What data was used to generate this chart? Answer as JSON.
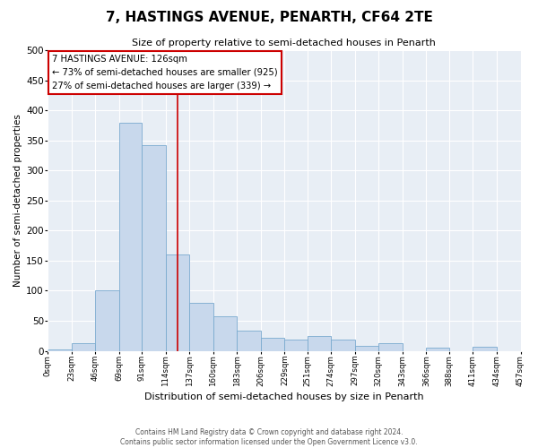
{
  "title": "7, HASTINGS AVENUE, PENARTH, CF64 2TE",
  "subtitle": "Size of property relative to semi-detached houses in Penarth",
  "xlabel": "Distribution of semi-detached houses by size in Penarth",
  "ylabel": "Number of semi-detached properties",
  "bin_labels": [
    "0sqm",
    "23sqm",
    "46sqm",
    "69sqm",
    "91sqm",
    "114sqm",
    "137sqm",
    "160sqm",
    "183sqm",
    "206sqm",
    "229sqm",
    "251sqm",
    "274sqm",
    "297sqm",
    "320sqm",
    "343sqm",
    "366sqm",
    "388sqm",
    "411sqm",
    "434sqm",
    "457sqm"
  ],
  "bin_edges": [
    0,
    23,
    46,
    69,
    91,
    114,
    137,
    160,
    183,
    206,
    229,
    251,
    274,
    297,
    320,
    343,
    366,
    388,
    411,
    434,
    457
  ],
  "bar_heights": [
    3,
    13,
    100,
    380,
    342,
    160,
    80,
    57,
    33,
    22,
    18,
    25,
    18,
    8,
    13,
    0,
    5,
    0,
    7,
    0,
    2
  ],
  "bar_color": "#c8d8ec",
  "bar_edge_color": "#7aaacf",
  "property_line_x": 126,
  "annotation_text_line1": "7 HASTINGS AVENUE: 126sqm",
  "annotation_text_line2": "← 73% of semi-detached houses are smaller (925)",
  "annotation_text_line3": "27% of semi-detached houses are larger (339) →",
  "annotation_box_color": "#ffffff",
  "annotation_box_edge": "#cc0000",
  "marker_line_color": "#cc0000",
  "ylim": [
    0,
    500
  ],
  "yticks": [
    0,
    50,
    100,
    150,
    200,
    250,
    300,
    350,
    400,
    450,
    500
  ],
  "footer_line1": "Contains HM Land Registry data © Crown copyright and database right 2024.",
  "footer_line2": "Contains public sector information licensed under the Open Government Licence v3.0.",
  "background_color": "#ffffff",
  "plot_bg_color": "#e8eef5",
  "grid_color": "#ffffff"
}
